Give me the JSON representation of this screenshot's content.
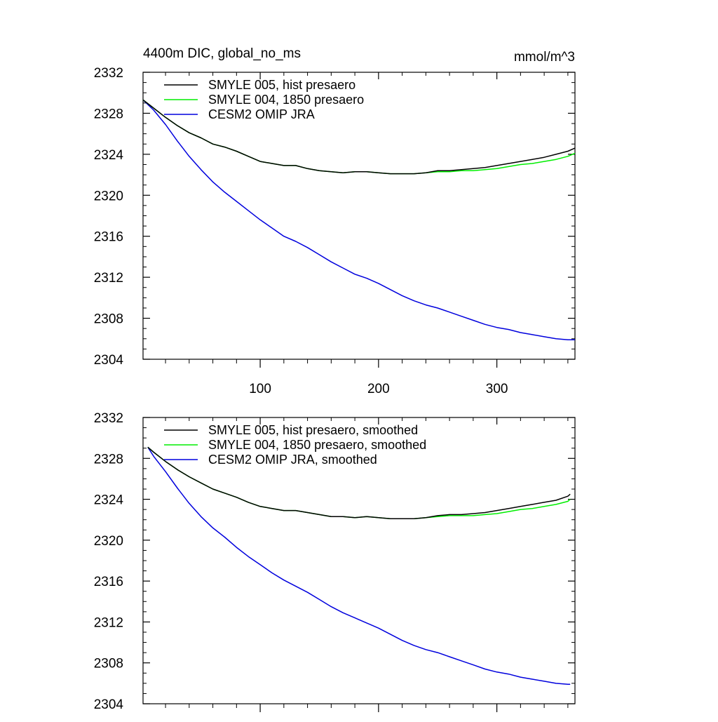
{
  "chart_data": [
    {
      "type": "line",
      "title": "4400m DIC, global_no_ms",
      "units": "mmol/m^3",
      "xlim": [
        1,
        366
      ],
      "ylim": [
        2304,
        2332
      ],
      "xticks": [
        100,
        200,
        300
      ],
      "xtick_labels": [
        "100",
        "200",
        "300"
      ],
      "yticks": [
        2304,
        2308,
        2312,
        2316,
        2320,
        2324,
        2328,
        2332
      ],
      "ytick_labels": [
        "2304",
        "2308",
        "2312",
        "2316",
        "2320",
        "2324",
        "2328",
        "2332"
      ],
      "grid": false,
      "legend_position": "top-left",
      "x": [
        1,
        10,
        20,
        30,
        40,
        50,
        60,
        70,
        80,
        90,
        100,
        110,
        120,
        130,
        140,
        150,
        160,
        170,
        180,
        190,
        200,
        210,
        220,
        230,
        240,
        250,
        260,
        270,
        280,
        290,
        300,
        310,
        320,
        330,
        340,
        350,
        360,
        366
      ],
      "series": [
        {
          "name": "SMYLE 005, hist presaero",
          "color": "#000000",
          "values": [
            2329.3,
            2328.5,
            2327.6,
            2326.8,
            2326.1,
            2325.6,
            2325.0,
            2324.7,
            2324.3,
            2323.8,
            2323.3,
            2323.1,
            2322.9,
            2322.9,
            2322.6,
            2322.4,
            2322.3,
            2322.2,
            2322.3,
            2322.3,
            2322.2,
            2322.1,
            2322.1,
            2322.1,
            2322.2,
            2322.4,
            2322.4,
            2322.5,
            2322.6,
            2322.7,
            2322.9,
            2323.1,
            2323.3,
            2323.5,
            2323.7,
            2324.0,
            2324.3,
            2324.6
          ]
        },
        {
          "name": "SMYLE 004, 1850 presaero",
          "color": "#00ee00",
          "values": [
            2329.3,
            2328.5,
            2327.6,
            2326.8,
            2326.1,
            2325.6,
            2325.0,
            2324.7,
            2324.3,
            2323.8,
            2323.3,
            2323.1,
            2322.9,
            2322.9,
            2322.6,
            2322.4,
            2322.3,
            2322.2,
            2322.3,
            2322.3,
            2322.2,
            2322.1,
            2322.1,
            2322.1,
            2322.2,
            2322.3,
            2322.3,
            2322.4,
            2322.4,
            2322.5,
            2322.6,
            2322.8,
            2323.0,
            2323.1,
            2323.3,
            2323.5,
            2323.8,
            2324.1
          ]
        },
        {
          "name": "CESM2 OMIP JRA",
          "color": "#0000dd",
          "values": [
            2329.3,
            2328.3,
            2326.9,
            2325.3,
            2323.8,
            2322.5,
            2321.3,
            2320.3,
            2319.4,
            2318.5,
            2317.6,
            2316.8,
            2316.0,
            2315.5,
            2314.9,
            2314.2,
            2313.5,
            2312.9,
            2312.3,
            2311.9,
            2311.4,
            2310.8,
            2310.2,
            2309.7,
            2309.3,
            2309.0,
            2308.6,
            2308.2,
            2307.8,
            2307.4,
            2307.1,
            2306.9,
            2306.6,
            2306.4,
            2306.2,
            2306.0,
            2305.9,
            2305.9
          ]
        }
      ]
    },
    {
      "type": "line",
      "title": "",
      "units": "",
      "xlim": [
        1,
        366
      ],
      "ylim": [
        2304,
        2332
      ],
      "xticks": [
        100,
        200,
        300
      ],
      "xtick_labels": [],
      "yticks": [
        2304,
        2308,
        2312,
        2316,
        2320,
        2324,
        2328,
        2332
      ],
      "ytick_labels": [
        "2304",
        "2308",
        "2312",
        "2316",
        "2320",
        "2324",
        "2328",
        "2332"
      ],
      "grid": false,
      "legend_position": "top-left",
      "x": [
        5,
        10,
        20,
        30,
        40,
        50,
        60,
        70,
        80,
        90,
        100,
        110,
        120,
        130,
        140,
        150,
        160,
        170,
        180,
        190,
        200,
        210,
        220,
        230,
        240,
        250,
        260,
        270,
        280,
        290,
        300,
        310,
        320,
        330,
        340,
        350,
        360,
        362
      ],
      "series": [
        {
          "name": "SMYLE 005, hist presaero, smoothed",
          "color": "#000000",
          "values": [
            2329.1,
            2328.6,
            2327.7,
            2326.9,
            2326.2,
            2325.6,
            2325.0,
            2324.6,
            2324.2,
            2323.7,
            2323.3,
            2323.1,
            2322.9,
            2322.9,
            2322.7,
            2322.5,
            2322.3,
            2322.3,
            2322.2,
            2322.3,
            2322.2,
            2322.1,
            2322.1,
            2322.1,
            2322.2,
            2322.4,
            2322.5,
            2322.5,
            2322.6,
            2322.7,
            2322.9,
            2323.1,
            2323.3,
            2323.5,
            2323.7,
            2323.9,
            2324.3,
            2324.5
          ]
        },
        {
          "name": "SMYLE 004, 1850 presaero, smoothed",
          "color": "#00ee00",
          "values": [
            2329.1,
            2328.6,
            2327.7,
            2326.9,
            2326.2,
            2325.6,
            2325.0,
            2324.6,
            2324.2,
            2323.7,
            2323.3,
            2323.1,
            2322.9,
            2322.9,
            2322.7,
            2322.5,
            2322.3,
            2322.3,
            2322.2,
            2322.3,
            2322.2,
            2322.1,
            2322.1,
            2322.1,
            2322.2,
            2322.3,
            2322.4,
            2322.4,
            2322.4,
            2322.5,
            2322.6,
            2322.8,
            2323.0,
            2323.1,
            2323.3,
            2323.5,
            2323.8,
            2324.0
          ]
        },
        {
          "name": "CESM2 OMIP JRA, smoothed",
          "color": "#0000dd",
          "values": [
            2329.1,
            2328.2,
            2326.7,
            2325.1,
            2323.6,
            2322.3,
            2321.2,
            2320.3,
            2319.3,
            2318.4,
            2317.6,
            2316.8,
            2316.1,
            2315.5,
            2314.9,
            2314.2,
            2313.5,
            2312.9,
            2312.4,
            2311.9,
            2311.4,
            2310.8,
            2310.2,
            2309.7,
            2309.3,
            2309.0,
            2308.6,
            2308.2,
            2307.8,
            2307.4,
            2307.1,
            2306.9,
            2306.6,
            2306.4,
            2306.2,
            2306.0,
            2305.9,
            2305.9
          ]
        }
      ]
    }
  ]
}
